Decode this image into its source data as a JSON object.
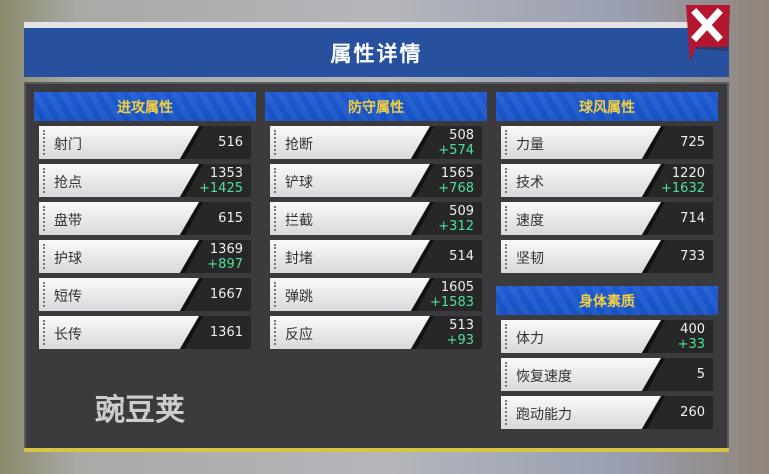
{
  "title": "属性详情",
  "close_icon": "close-x-icon",
  "colors": {
    "header": "#27509e",
    "section": "#1a56cc",
    "section_text": "#f3cf3e",
    "bonus": "#4ee09a",
    "close": "#b5162f"
  },
  "sections": [
    {
      "title": "进攻属性",
      "rows": [
        {
          "label": "射门",
          "value": "516",
          "bonus": ""
        },
        {
          "label": "抢点",
          "value": "1353",
          "bonus": "+1425"
        },
        {
          "label": "盘带",
          "value": "615",
          "bonus": ""
        },
        {
          "label": "护球",
          "value": "1369",
          "bonus": "+897"
        },
        {
          "label": "短传",
          "value": "1667",
          "bonus": ""
        },
        {
          "label": "长传",
          "value": "1361",
          "bonus": ""
        }
      ]
    },
    {
      "title": "防守属性",
      "rows": [
        {
          "label": "抢断",
          "value": "508",
          "bonus": "+574"
        },
        {
          "label": "铲球",
          "value": "1565",
          "bonus": "+768"
        },
        {
          "label": "拦截",
          "value": "509",
          "bonus": "+312"
        },
        {
          "label": "封堵",
          "value": "514",
          "bonus": ""
        },
        {
          "label": "弹跳",
          "value": "1605",
          "bonus": "+1583"
        },
        {
          "label": "反应",
          "value": "513",
          "bonus": "+93"
        }
      ]
    },
    {
      "title": "球风属性",
      "rows": [
        {
          "label": "力量",
          "value": "725",
          "bonus": ""
        },
        {
          "label": "技术",
          "value": "1220",
          "bonus": "+1632"
        },
        {
          "label": "速度",
          "value": "714",
          "bonus": ""
        },
        {
          "label": "坚韧",
          "value": "733",
          "bonus": ""
        }
      ]
    },
    {
      "title": "身体素质",
      "rows": [
        {
          "label": "体力",
          "value": "400",
          "bonus": "+33"
        },
        {
          "label": "恢复速度",
          "value": "5",
          "bonus": ""
        },
        {
          "label": "跑动能力",
          "value": "260",
          "bonus": ""
        }
      ]
    }
  ],
  "watermark": "豌豆荚"
}
